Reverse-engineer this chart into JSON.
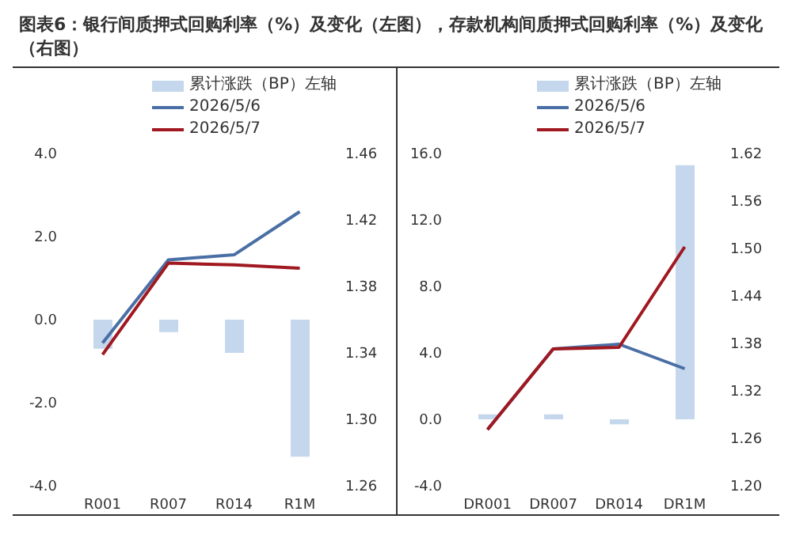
{
  "chart_data": [
    {
      "type": "bar",
      "title": "图表6：银行间质押式回购利率（%）及变化（左图），存款机构间质押式回购利率（%）及变化（右图）",
      "categories": [
        "R001",
        "R007",
        "R014",
        "R1M"
      ],
      "series": [
        {
          "name": "累计涨跌（BP）左轴",
          "color": "#c5d7ec",
          "values": [
            -0.7,
            -0.3,
            -0.8,
            -3.3
          ]
        },
        {
          "name": "2026/5/6",
          "type": "line",
          "axis": "y2",
          "color": "#4a6fa5",
          "values": [
            1.346,
            1.396,
            1.399,
            1.425
          ]
        },
        {
          "name": "2026/5/7",
          "type": "line",
          "axis": "y2",
          "color": "#a01820",
          "values": [
            1.339,
            1.394,
            1.393,
            1.391
          ]
        }
      ],
      "ylim": [
        -4,
        4
      ],
      "yticks": [
        {
          "value": -4,
          "label": "-4.0"
        },
        {
          "value": -2,
          "label": "-2.0"
        },
        {
          "value": 0,
          "label": "0.0"
        },
        {
          "value": 2,
          "label": "2.0"
        },
        {
          "value": 4,
          "label": "4.0"
        }
      ],
      "y2lim": [
        1.26,
        1.46
      ],
      "y2ticks": [
        1.26,
        {
          "value": 1.3,
          "label": "1.30"
        },
        1.34,
        1.38,
        1.42,
        1.46
      ],
      "legend": "top",
      "grid": false,
      "marker": "none"
    },
    {
      "type": "bar",
      "categories": [
        "DR001",
        "DR007",
        "DR014",
        "DR1M"
      ],
      "series": [
        {
          "name": "累计涨跌（BP）左轴",
          "color": "#c5d7ec",
          "values": [
            0.3,
            0.3,
            -0.3,
            15.3
          ]
        },
        {
          "name": "2026/5/6",
          "type": "line",
          "axis": "y2",
          "color": "#4a6fa5",
          "values": [
            1.271,
            1.373,
            1.379,
            1.348
          ]
        },
        {
          "name": "2026/5/7",
          "type": "line",
          "axis": "y2",
          "color": "#a01820",
          "values": [
            1.271,
            1.373,
            1.375,
            1.502
          ]
        }
      ],
      "ylim": [
        -4,
        16
      ],
      "yticks": [
        {
          "value": -4,
          "label": "-4.0"
        },
        {
          "value": 0,
          "label": "0.0"
        },
        {
          "value": 4,
          "label": "4.0"
        },
        {
          "value": 8,
          "label": "8.0"
        },
        {
          "value": 12,
          "label": "12.0"
        },
        {
          "value": 16,
          "label": "16.0"
        }
      ],
      "y2lim": [
        1.2,
        1.62
      ],
      "y2ticks": [
        {
          "value": 1.2,
          "label": "1.20"
        },
        1.26,
        1.32,
        1.38,
        1.44,
        {
          "value": 1.5,
          "label": "1.50"
        },
        1.56,
        1.62
      ],
      "legend": "top",
      "grid": false,
      "marker": "none"
    }
  ]
}
